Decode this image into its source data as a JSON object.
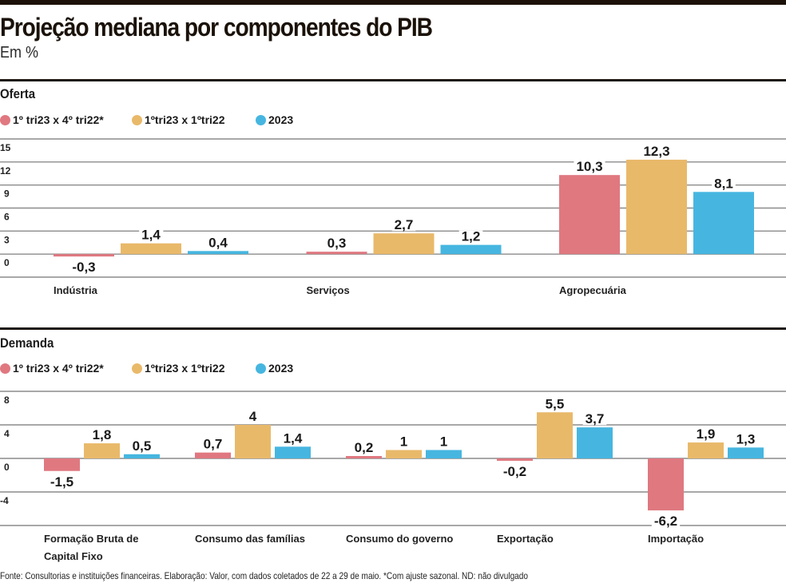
{
  "header": {
    "title": "Projeção mediana por componentes do PIB",
    "subtitle": "Em %"
  },
  "legend": [
    {
      "label": "1º tri23 x 4º tri22*",
      "color": "#e07880"
    },
    {
      "label": "1ºtri23 x 1ºtri22",
      "color": "#e9b96a"
    },
    {
      "label": "2023",
      "color": "#46b6e0"
    }
  ],
  "footer": "Fonte: Consultorias e instituições financeiras. Elaboração: Valor, com dados coletados de 22 a 29 de maio. *Com ajuste sazonal. ND: não divulgado",
  "chart_data": [
    {
      "type": "bar",
      "title": "Oferta",
      "xlabel": "",
      "ylabel": "%",
      "ylim": [
        -3,
        15
      ],
      "yticks": [
        15,
        12,
        9,
        6,
        3,
        0
      ],
      "grid": true,
      "legend_position": "top-left",
      "categories": [
        [
          "Indústria"
        ],
        [
          "Serviços"
        ],
        [
          "Agropecuária"
        ]
      ],
      "series": [
        {
          "name": "1º tri23 x 4º tri22*",
          "color": "#e07880",
          "values": [
            -0.3,
            0.3,
            10.3
          ],
          "labels": [
            "-0,3",
            "0,3",
            "10,3"
          ]
        },
        {
          "name": "1ºtri23 x 1ºtri22",
          "color": "#e9b96a",
          "values": [
            1.4,
            2.7,
            12.3
          ],
          "labels": [
            "1,4",
            "2,7",
            "12,3"
          ]
        },
        {
          "name": "2023",
          "color": "#46b6e0",
          "values": [
            0.4,
            1.2,
            8.1
          ],
          "labels": [
            "0,4",
            "1,2",
            "8,1"
          ]
        }
      ]
    },
    {
      "type": "bar",
      "title": "Demanda",
      "xlabel": "",
      "ylabel": "%",
      "ylim": [
        -8,
        8
      ],
      "yticks": [
        8,
        4,
        0,
        -4
      ],
      "grid": true,
      "legend_position": "top-left",
      "categories": [
        [
          "Formação Bruta de",
          "Capital Fixo"
        ],
        [
          "Consumo das famílias"
        ],
        [
          "Consumo do governo"
        ],
        [
          "Exportação"
        ],
        [
          "Importação"
        ]
      ],
      "series": [
        {
          "name": "1º tri23 x 4º tri22*",
          "color": "#e07880",
          "values": [
            -1.5,
            0.7,
            0.2,
            -0.2,
            -6.2
          ],
          "labels": [
            "-1,5",
            "0,7",
            "0,2",
            "-0,2",
            "-6,2"
          ]
        },
        {
          "name": "1ºtri23 x 1ºtri22",
          "color": "#e9b96a",
          "values": [
            1.8,
            4,
            1,
            5.5,
            1.9
          ],
          "labels": [
            "1,8",
            "4",
            "1",
            "5,5",
            "1,9"
          ]
        },
        {
          "name": "2023",
          "color": "#46b6e0",
          "values": [
            0.5,
            1.4,
            1,
            3.7,
            1.3
          ],
          "labels": [
            "0,5",
            "1,4",
            "1",
            "3,7",
            "1,3"
          ]
        }
      ]
    }
  ]
}
